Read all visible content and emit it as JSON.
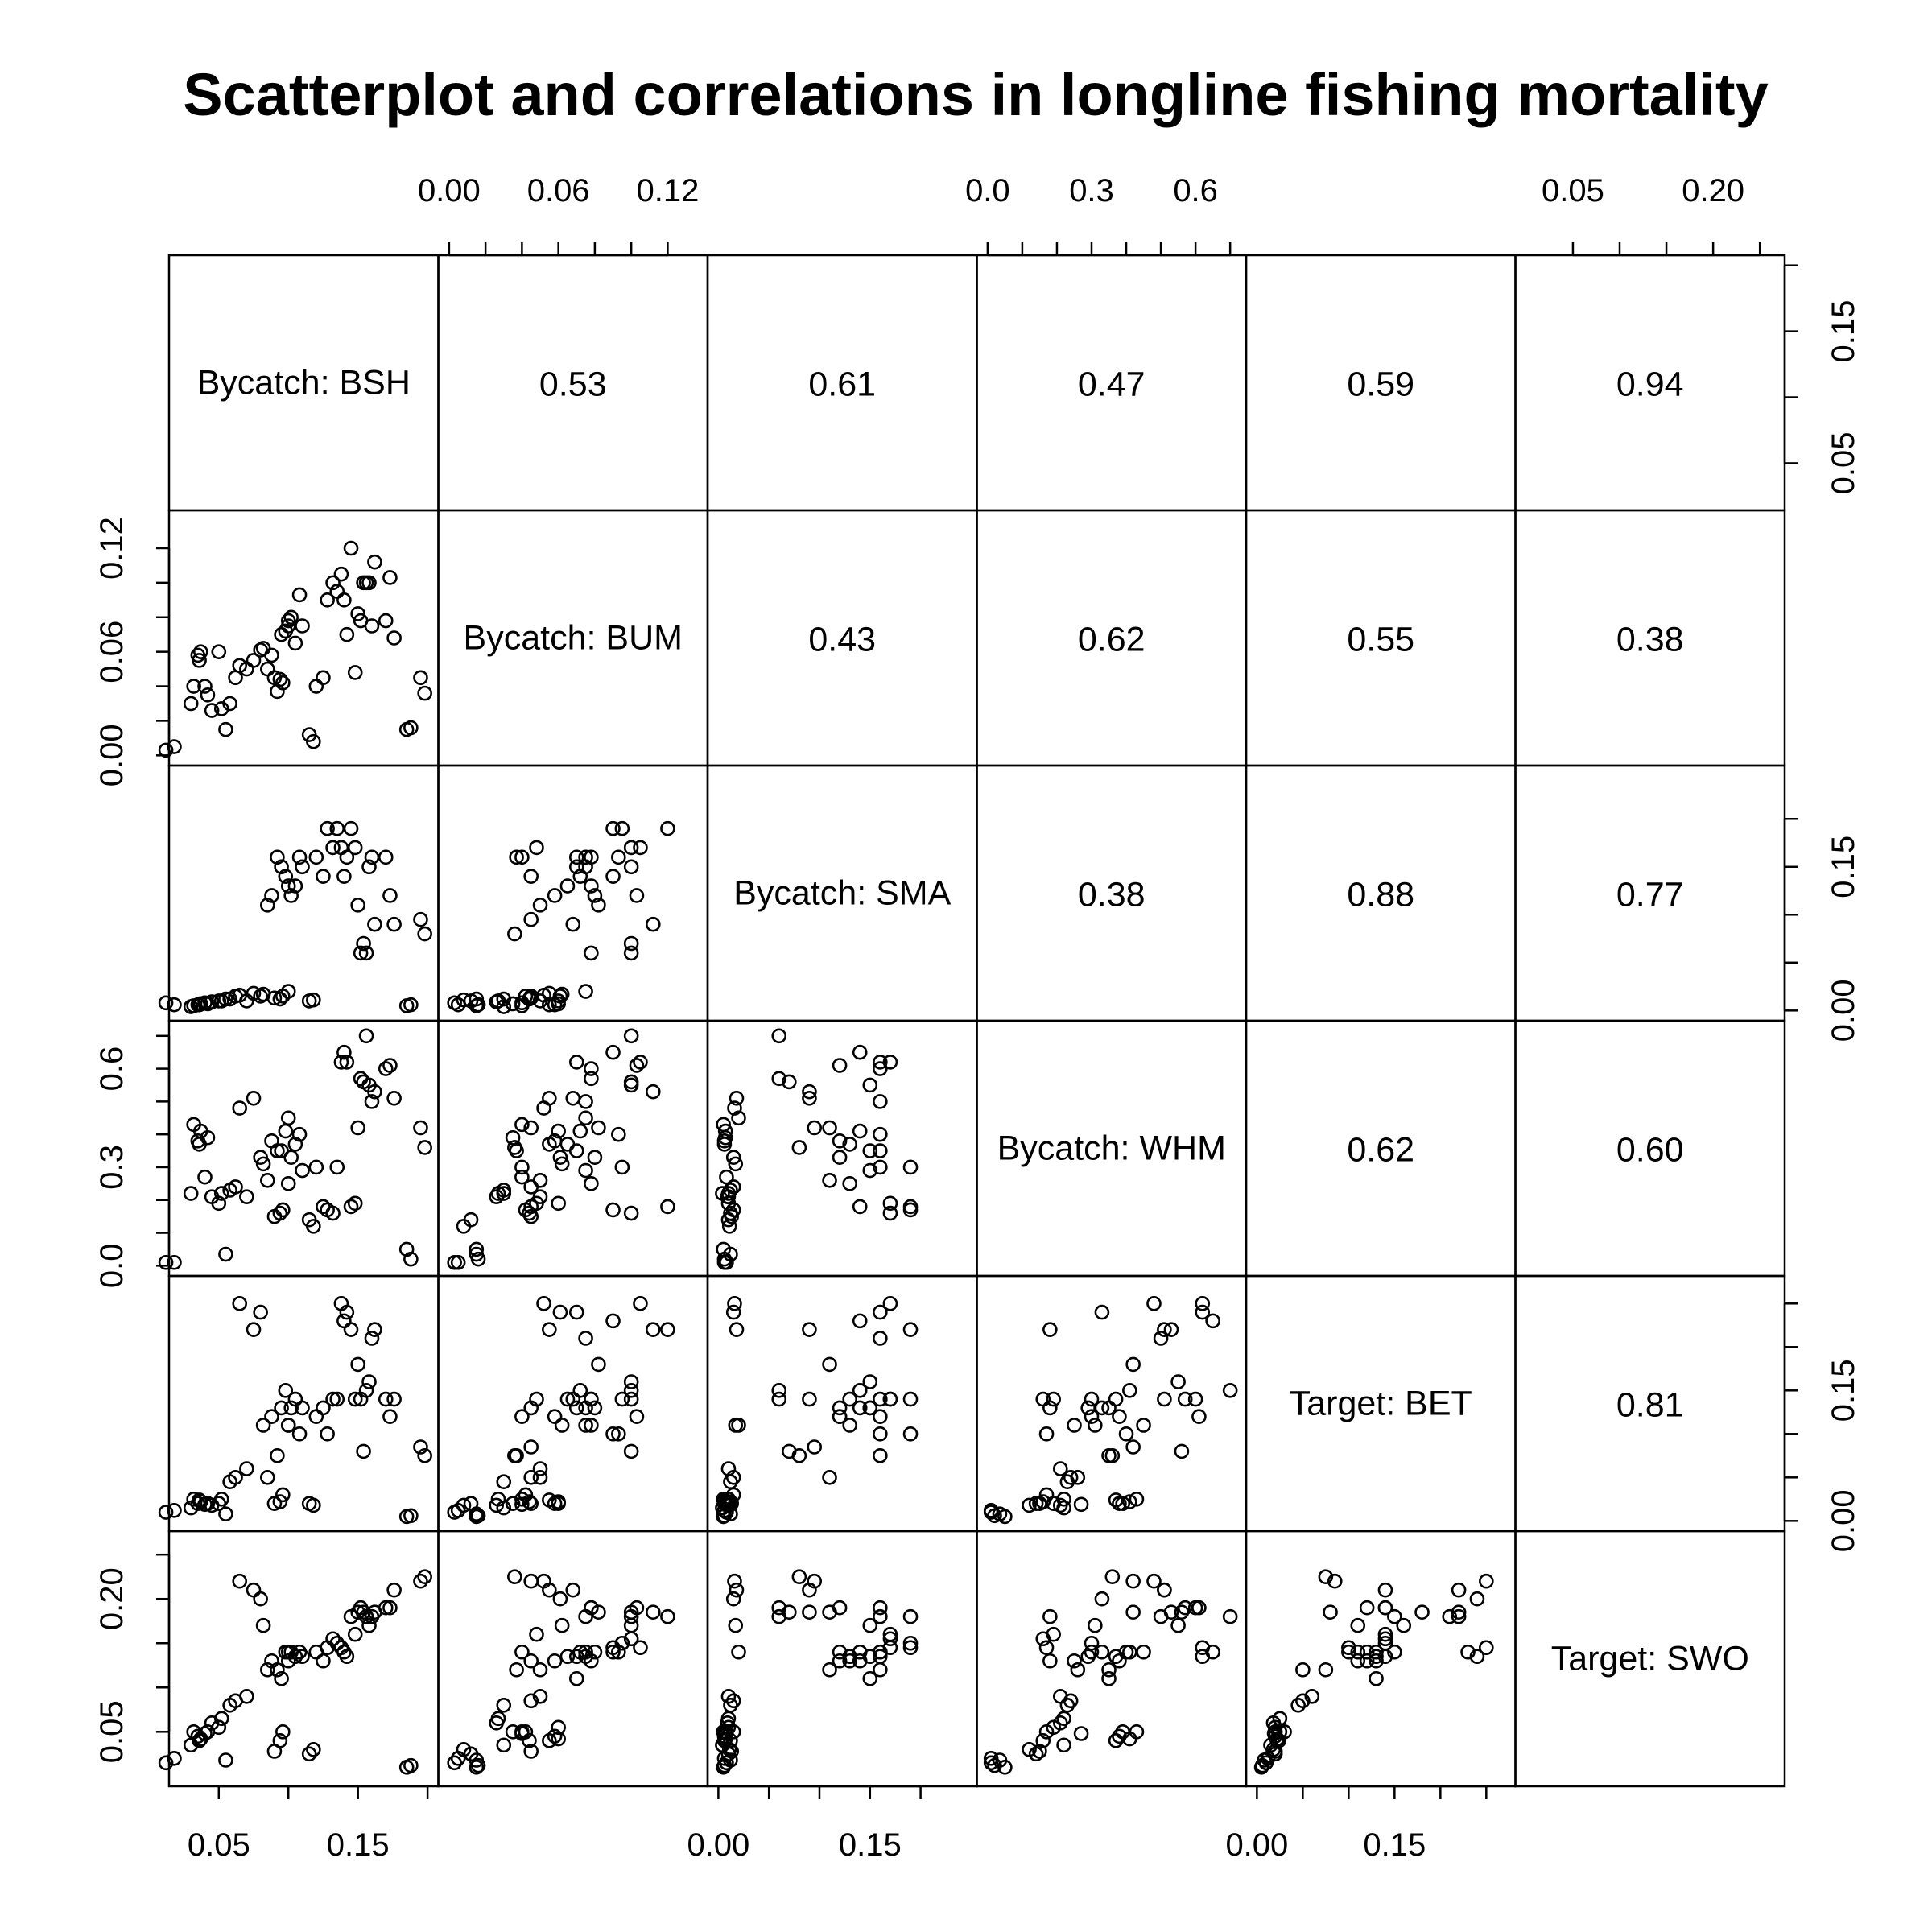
{
  "title": "Scatterplot and correlations in longline fishing mortality",
  "chart_data": {
    "type": "scatter",
    "layout": "pairs",
    "title": "Scatterplot and correlations in longline fishing mortality",
    "variables": [
      {
        "name": "Bycatch: BSH",
        "range": [
          0.022,
          0.2
        ],
        "ticks": [
          0.05,
          0.1,
          0.15,
          0.2
        ],
        "tick_labels": [
          "0.05",
          "0.15"
        ]
      },
      {
        "name": "Bycatch: BUM",
        "range": [
          0.0,
          0.136
        ],
        "ticks": [
          0.0,
          0.02,
          0.04,
          0.06,
          0.08,
          0.1,
          0.12
        ],
        "tick_labels": [
          "0.00",
          "0.06",
          "0.12"
        ]
      },
      {
        "name": "Bycatch: SMA",
        "range": [
          0.0,
          0.245
        ],
        "ticks": [
          0.0,
          0.05,
          0.1,
          0.15,
          0.2
        ],
        "tick_labels": [
          "0.00",
          "0.15"
        ]
      },
      {
        "name": "Bycatch: WHM",
        "range": [
          0.0,
          0.715
        ],
        "ticks": [
          0.0,
          0.1,
          0.2,
          0.3,
          0.4,
          0.5,
          0.6,
          0.7
        ],
        "tick_labels": [
          "0.0",
          "0.3",
          "0.6"
        ]
      },
      {
        "name": "Target: BET",
        "range": [
          0.0,
          0.27
        ],
        "ticks": [
          0.0,
          0.05,
          0.1,
          0.15,
          0.2,
          0.25
        ],
        "tick_labels": [
          "0.00",
          "0.15"
        ]
      },
      {
        "name": "Target: SWO",
        "range": [
          0.0,
          0.265
        ],
        "ticks": [
          0.05,
          0.1,
          0.15,
          0.2,
          0.25
        ],
        "tick_labels": [
          "0.05",
          "0.20"
        ]
      }
    ],
    "axis_sides": {
      "top": [
        1,
        3,
        5
      ],
      "bottom": [
        0,
        2,
        4
      ],
      "left": [
        1,
        3,
        5
      ],
      "right": [
        0,
        2,
        4
      ]
    },
    "correlations": [
      [
        null,
        "0.53",
        "0.61",
        "0.47",
        "0.59",
        "0.94"
      ],
      [
        null,
        null,
        "0.43",
        "0.62",
        "0.55",
        "0.38"
      ],
      [
        null,
        null,
        null,
        "0.38",
        "0.88",
        "0.77"
      ],
      [
        null,
        null,
        null,
        null,
        "0.62",
        "0.60"
      ],
      [
        null,
        null,
        null,
        null,
        null,
        "0.81"
      ],
      [
        null,
        null,
        null,
        null,
        null,
        null
      ]
    ],
    "observations": [
      [
        0.03,
        0.03,
        0.004,
        0.22,
        0.015,
        0.035
      ],
      [
        0.032,
        0.04,
        0.005,
        0.43,
        0.025,
        0.05
      ],
      [
        0.035,
        0.058,
        0.006,
        0.38,
        0.02,
        0.045
      ],
      [
        0.036,
        0.055,
        0.006,
        0.37,
        0.024,
        0.04
      ],
      [
        0.037,
        0.06,
        0.007,
        0.41,
        0.022,
        0.042
      ],
      [
        0.04,
        0.04,
        0.008,
        0.27,
        0.019,
        0.048
      ],
      [
        0.042,
        0.035,
        0.007,
        0.39,
        0.02,
        0.05
      ],
      [
        0.045,
        0.026,
        0.009,
        0.21,
        0.018,
        0.06
      ],
      [
        0.05,
        0.06,
        0.01,
        0.19,
        0.02,
        0.055
      ],
      [
        0.052,
        0.027,
        0.01,
        0.22,
        0.025,
        0.065
      ],
      [
        0.058,
        0.03,
        0.012,
        0.23,
        0.045,
        0.08
      ],
      [
        0.062,
        0.045,
        0.015,
        0.24,
        0.05,
        0.085
      ],
      [
        0.07,
        0.05,
        0.01,
        0.21,
        0.06,
        0.09
      ],
      [
        0.085,
        0.05,
        0.11,
        0.26,
        0.05,
        0.12
      ],
      [
        0.088,
        0.058,
        0.12,
        0.38,
        0.12,
        0.13
      ],
      [
        0.092,
        0.037,
        0.16,
        0.35,
        0.075,
        0.12
      ],
      [
        0.095,
        0.07,
        0.15,
        0.35,
        0.13,
        0.11
      ],
      [
        0.098,
        0.072,
        0.14,
        0.41,
        0.15,
        0.14
      ],
      [
        0.1,
        0.078,
        0.13,
        0.25,
        0.11,
        0.13
      ],
      [
        0.102,
        0.08,
        0.12,
        0.33,
        0.13,
        0.14
      ],
      [
        0.105,
        0.065,
        0.13,
        0.37,
        0.14,
        0.135
      ],
      [
        0.108,
        0.093,
        0.16,
        0.4,
        0.1,
        0.14
      ],
      [
        0.11,
        0.075,
        0.15,
        0.29,
        0.13,
        0.135
      ],
      [
        0.1,
        0.075,
        0.02,
        0.45,
        0.11,
        0.14
      ],
      [
        0.12,
        0.04,
        0.16,
        0.3,
        0.12,
        0.14
      ],
      [
        0.125,
        0.045,
        0.14,
        0.18,
        0.13,
        0.13
      ],
      [
        0.128,
        0.09,
        0.19,
        0.17,
        0.1,
        0.145
      ],
      [
        0.132,
        0.1,
        0.17,
        0.16,
        0.14,
        0.155
      ],
      [
        0.135,
        0.095,
        0.19,
        0.3,
        0.14,
        0.15
      ],
      [
        0.138,
        0.105,
        0.17,
        0.62,
        0.25,
        0.145
      ],
      [
        0.14,
        0.09,
        0.14,
        0.65,
        0.23,
        0.14
      ],
      [
        0.142,
        0.07,
        0.16,
        0.62,
        0.24,
        0.135
      ],
      [
        0.145,
        0.12,
        0.19,
        0.18,
        0.22,
        0.18
      ],
      [
        0.148,
        0.048,
        0.17,
        0.19,
        0.14,
        0.16
      ],
      [
        0.15,
        0.082,
        0.11,
        0.42,
        0.18,
        0.185
      ],
      [
        0.152,
        0.078,
        0.06,
        0.57,
        0.14,
        0.19
      ],
      [
        0.154,
        0.1,
        0.07,
        0.56,
        0.08,
        0.185
      ],
      [
        0.156,
        0.1,
        0.06,
        0.7,
        0.15,
        0.18
      ],
      [
        0.158,
        0.1,
        0.15,
        0.55,
        0.16,
        0.17
      ],
      [
        0.16,
        0.075,
        0.16,
        0.5,
        0.21,
        0.18
      ],
      [
        0.162,
        0.112,
        0.09,
        0.53,
        0.22,
        0.185
      ],
      [
        0.17,
        0.078,
        0.16,
        0.6,
        0.14,
        0.19
      ],
      [
        0.173,
        0.103,
        0.12,
        0.61,
        0.12,
        0.19
      ],
      [
        0.176,
        0.068,
        0.09,
        0.51,
        0.14,
        0.21
      ],
      [
        0.195,
        0.045,
        0.095,
        0.42,
        0.085,
        0.22
      ],
      [
        0.198,
        0.036,
        0.08,
        0.36,
        0.075,
        0.225
      ],
      [
        0.012,
        0.003,
        0.008,
        0.01,
        0.01,
        0.015
      ],
      [
        0.018,
        0.005,
        0.006,
        0.01,
        0.012,
        0.02
      ],
      [
        0.055,
        0.015,
        0.012,
        0.035,
        0.008,
        0.018
      ],
      [
        0.065,
        0.052,
        0.016,
        0.48,
        0.25,
        0.22
      ],
      [
        0.075,
        0.055,
        0.018,
        0.51,
        0.22,
        0.21
      ],
      [
        0.08,
        0.061,
        0.015,
        0.33,
        0.24,
        0.2
      ],
      [
        0.082,
        0.062,
        0.017,
        0.31,
        0.11,
        0.17
      ],
      [
        0.115,
        0.012,
        0.01,
        0.14,
        0.02,
        0.025
      ],
      [
        0.118,
        0.008,
        0.011,
        0.12,
        0.018,
        0.03
      ],
      [
        0.185,
        0.015,
        0.005,
        0.05,
        0.005,
        0.01
      ],
      [
        0.188,
        0.016,
        0.006,
        0.02,
        0.006,
        0.012
      ],
      [
        0.09,
        0.045,
        0.013,
        0.15,
        0.02,
        0.028
      ],
      [
        0.094,
        0.044,
        0.012,
        0.16,
        0.022,
        0.04
      ],
      [
        0.096,
        0.042,
        0.015,
        0.17,
        0.03,
        0.05
      ]
    ]
  }
}
